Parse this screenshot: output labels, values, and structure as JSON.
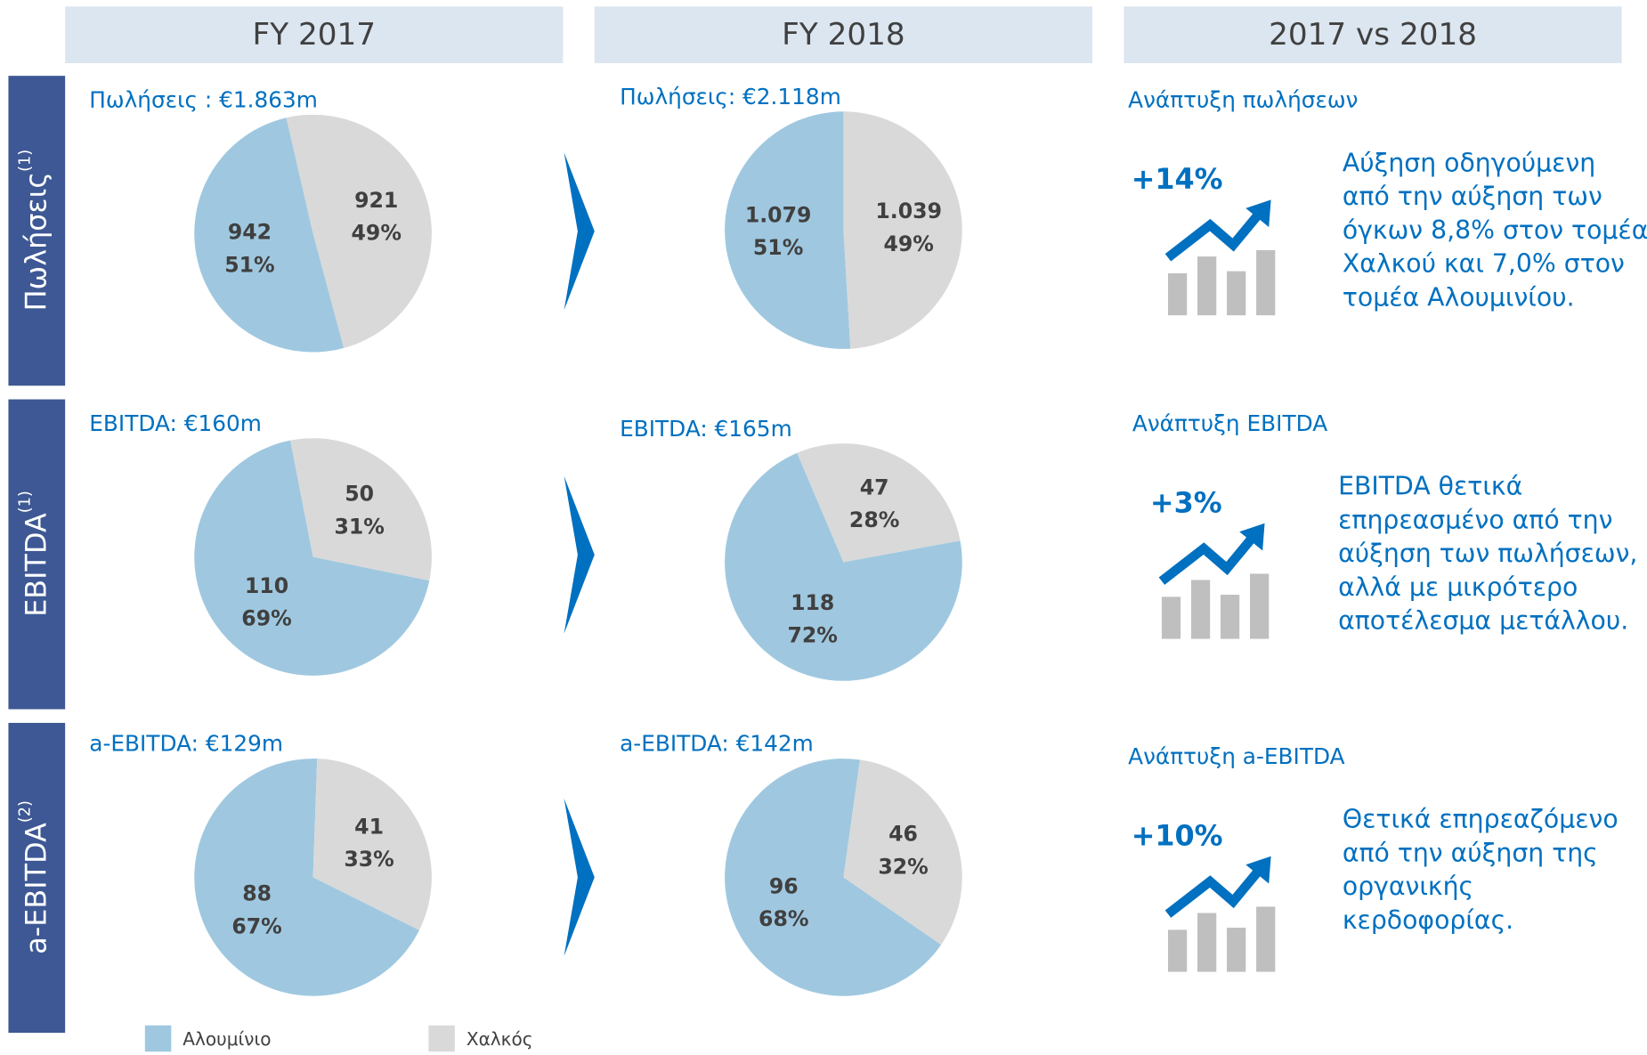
{
  "headers": [
    "FY 2017",
    "FY 2018",
    "2017 vs 2018"
  ],
  "row_labels": [
    {
      "text": "Πωλήσεις",
      "sup": "(1)"
    },
    {
      "text": "EBITDA",
      "sup": "(1)"
    },
    {
      "text": "a-EBITDA",
      "sup": "(2)"
    }
  ],
  "chart_data": [
    {
      "type": "pie",
      "title": "Πωλήσεις : €1.863m",
      "categories": [
        "Αλουμίνιο",
        "Χαλκός"
      ],
      "values": [
        942,
        921
      ],
      "percent_labels": [
        "51%",
        "49%"
      ],
      "colors": [
        "#9fc8e0",
        "#d9d9d9"
      ]
    },
    {
      "type": "pie",
      "title": "EBITDA: €160m",
      "categories": [
        "Αλουμίνιο",
        "Χαλκός"
      ],
      "values": [
        110,
        50
      ],
      "percent_labels": [
        "69%",
        "31%"
      ],
      "colors": [
        "#9fc8e0",
        "#d9d9d9"
      ]
    },
    {
      "type": "pie",
      "title": "a-EBITDA: €129m",
      "categories": [
        "Αλουμίνιο",
        "Χαλκός"
      ],
      "values": [
        88,
        41
      ],
      "percent_labels": [
        "67%",
        "33%"
      ],
      "colors": [
        "#9fc8e0",
        "#d9d9d9"
      ]
    },
    {
      "type": "pie",
      "title": "Πωλήσεις: €2.118m",
      "categories": [
        "Αλουμίνιο",
        "Χαλκός"
      ],
      "values": [
        1079,
        1039
      ],
      "value_labels": [
        "1.079",
        "1.039"
      ],
      "percent_labels": [
        "51%",
        "49%"
      ],
      "colors": [
        "#9fc8e0",
        "#d9d9d9"
      ]
    },
    {
      "type": "pie",
      "title": "EBITDA: €165m",
      "categories": [
        "Αλουμίνιο",
        "Χαλκός"
      ],
      "values": [
        118,
        47
      ],
      "percent_labels": [
        "72%",
        "28%"
      ],
      "colors": [
        "#9fc8e0",
        "#d9d9d9"
      ]
    },
    {
      "type": "pie",
      "title": "a-EBITDA: €142m",
      "categories": [
        "Αλουμίνιο",
        "Χαλκός"
      ],
      "values": [
        96,
        46
      ],
      "percent_labels": [
        "68%",
        "32%"
      ],
      "colors": [
        "#9fc8e0",
        "#d9d9d9"
      ]
    }
  ],
  "growth": [
    {
      "title": "Ανάπτυξη πωλήσεων",
      "value": "+14%",
      "text": [
        "Αύξηση οδηγούμενη",
        "από την αύξηση των",
        "όγκων 8,8% στον τομέα",
        "Χαλκού  και 7,0% στον",
        "τομέα Αλουμινίου."
      ]
    },
    {
      "title": "Ανάπτυξη EBITDA",
      "value": "+3%",
      "text": [
        "EBITDA θετικά",
        "επηρεασμένο από την",
        "αύξηση των πωλήσεων,",
        "αλλά με μικρότερο",
        "αποτέλεσμα μετάλλου."
      ]
    },
    {
      "title": "Ανάπτυξη a-EBITDA",
      "value": "+10%",
      "text": [
        "Θετικά επηρεαζόμενο",
        "από την αύξηση της",
        "οργανικής",
        "κερδοφορίας."
      ]
    }
  ]
}
